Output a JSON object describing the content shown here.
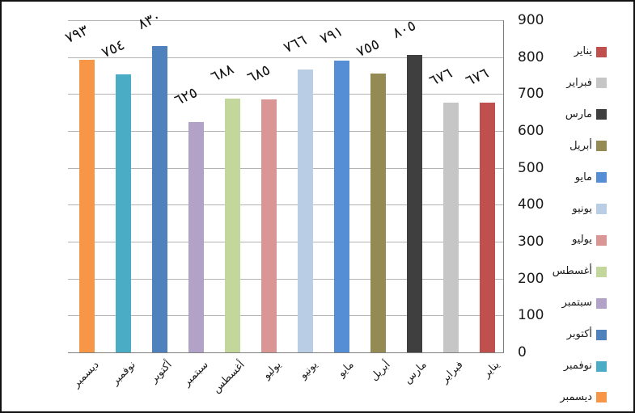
{
  "chart_data": {
    "type": "bar",
    "direction": "rtl",
    "title": "",
    "xlabel": "",
    "ylabel": "",
    "ylim": [
      0,
      900
    ],
    "ytick_step": 100,
    "grid": true,
    "value_axis_side": "right",
    "legend_position": "right",
    "yticks": [
      "900",
      "800",
      "700",
      "600",
      "500",
      "400",
      "300",
      "200",
      "100",
      "0"
    ],
    "categories": [
      "ديسمبر",
      "نوفمبر",
      "أكتوبر",
      "سبتمبر",
      "أغسطس",
      "يوليو",
      "يونيو",
      "مايو",
      "أبريل",
      "مارس",
      "فبراير",
      "يناير"
    ],
    "values": [
      793,
      754,
      830,
      625,
      688,
      685,
      766,
      791,
      755,
      805,
      676,
      676
    ],
    "data_labels": [
      "٧٩٣",
      "٧٥٤",
      "٨٣٠",
      "٦٢٥",
      "٦٨٨",
      "٦٨٥",
      "٧٦٦",
      "٧٩١",
      "٧٥٥",
      "٨٠٥",
      "٦٧٦",
      "٦٧٦"
    ],
    "bar_colors": [
      "#F79646",
      "#4BACC6",
      "#4F81BD",
      "#B3A2C7",
      "#C3D69B",
      "#D99694",
      "#B9CDE5",
      "#558ED5",
      "#948A54",
      "#3F3F3F",
      "#C6C6C6",
      "#C0504D"
    ],
    "legend": [
      {
        "label": "يناير",
        "color": "#C0504D"
      },
      {
        "label": "فبراير",
        "color": "#C6C6C6"
      },
      {
        "label": "مارس",
        "color": "#3F3F3F"
      },
      {
        "label": "أبريل",
        "color": "#948A54"
      },
      {
        "label": "مايو",
        "color": "#558ED5"
      },
      {
        "label": "يونيو",
        "color": "#B9CDE5"
      },
      {
        "label": "يوليو",
        "color": "#D99694"
      },
      {
        "label": "أغسطس",
        "color": "#C3D69B"
      },
      {
        "label": "سبتمبر",
        "color": "#B3A2C7"
      },
      {
        "label": "أكتوبر",
        "color": "#4F81BD"
      },
      {
        "label": "نوفمبر",
        "color": "#4BACC6"
      },
      {
        "label": "ديسمبر",
        "color": "#F79646"
      }
    ],
    "gridline_color": "#b3b3b3",
    "axis_line_color": "#7f7f7f",
    "border_color": "#111111"
  }
}
